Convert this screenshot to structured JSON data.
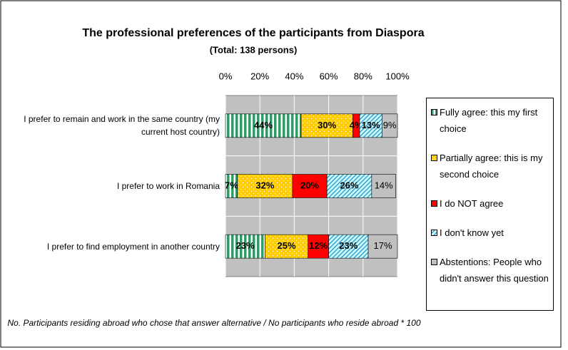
{
  "chart_data": {
    "type": "stacked_barh",
    "title": "The professional preferences of the participants from Diaspora",
    "subtitle": "(Total: 138 persons)",
    "categories": [
      "I prefer to remain and work in the same country  (my current host country)",
      "I prefer to work in Romania",
      "I prefer to find employment in another country"
    ],
    "series": [
      {
        "name": "Fully agree: this my first choice",
        "color": "#339966",
        "hatch": "vertical",
        "values": [
          44,
          7,
          23
        ],
        "value_labels": [
          "44%",
          "7%",
          "23%"
        ]
      },
      {
        "name": "Partially agree: this is my second choice",
        "color": "#ffcc00",
        "hatch": "dots",
        "values": [
          30,
          32,
          25
        ],
        "value_labels": [
          "30%",
          "32%",
          "25%"
        ]
      },
      {
        "name": "I do NOT agree",
        "color": "#ff0000",
        "hatch": "none",
        "values": [
          4,
          20,
          12
        ],
        "value_labels": [
          "4%",
          "20%",
          "12%"
        ]
      },
      {
        "name": "I don't know yet",
        "color": "#ccffff",
        "hatch": "diagonal",
        "values": [
          13,
          26,
          23
        ],
        "value_labels": [
          "13%",
          "26%",
          "23%"
        ]
      },
      {
        "name": "Abstentions: People who didn't answer this question",
        "color": "#c0c0c0",
        "hatch": "none",
        "values": [
          9,
          14,
          17
        ],
        "value_labels": [
          "9%",
          "14%",
          "17%"
        ]
      }
    ],
    "xlim": [
      0,
      100
    ],
    "xticks": [
      {
        "value": 0,
        "label": "0%"
      },
      {
        "value": 20,
        "label": "20%"
      },
      {
        "value": 40,
        "label": "40%"
      },
      {
        "value": 60,
        "label": "60%"
      },
      {
        "value": 80,
        "label": "80%"
      },
      {
        "value": 100,
        "label": "100%"
      }
    ],
    "grid": true,
    "legend": "right",
    "note": "No. Participants residing abroad who chose that answer alternative / No participants who reside abroad * 100"
  }
}
